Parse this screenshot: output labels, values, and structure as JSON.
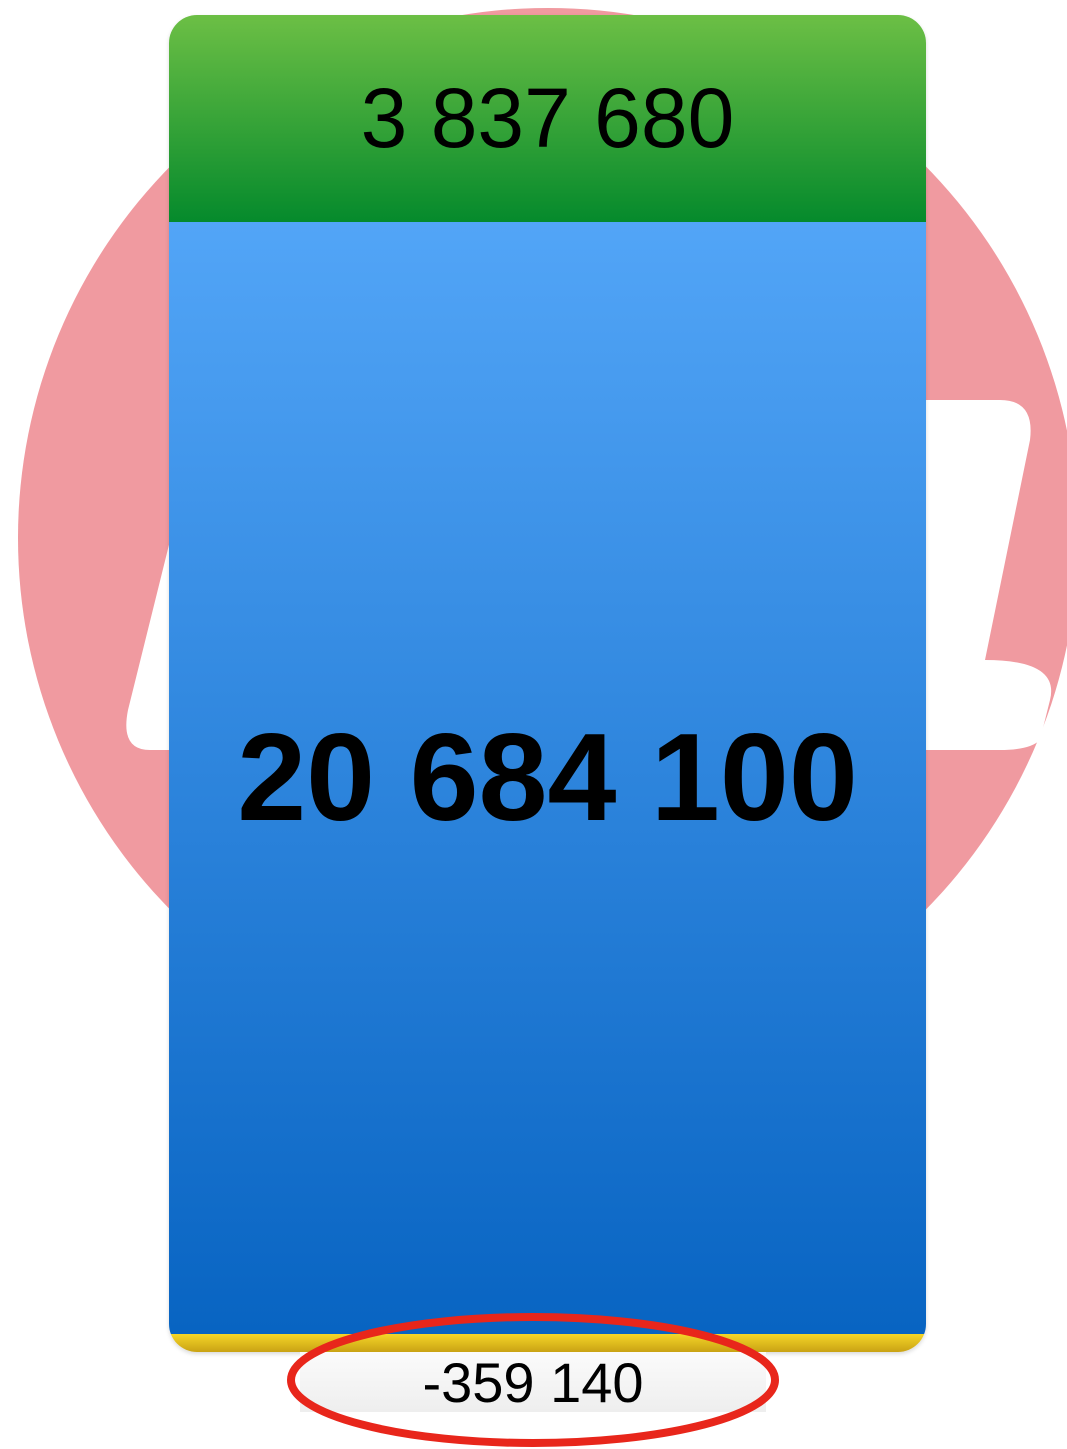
{
  "top_value": "3 837 680",
  "main_value": "20 684 100",
  "bottom_value": "-359 140"
}
